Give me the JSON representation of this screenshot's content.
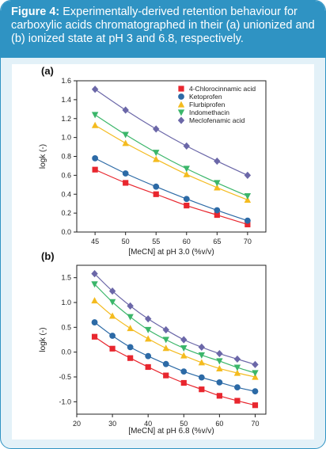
{
  "caption": {
    "lead": "Figure 4:",
    "text": " Experimentally-derived retention behaviour for carboxylic acids chromatographed in their (a) unionized and (b) ionized state at pH 3 and 6.8, respectively."
  },
  "chart_data": [
    {
      "type": "line",
      "panel_label": "(a)",
      "xlabel": "[MeCN] at pH 3.0 (%v/v)",
      "ylabel": "logk (-)",
      "x": [
        45,
        50,
        55,
        60,
        65,
        70
      ],
      "xlim": [
        42,
        73
      ],
      "ylim": [
        0.0,
        1.6
      ],
      "xticks": [
        45,
        50,
        55,
        60,
        65,
        70
      ],
      "yticks": [
        0.0,
        0.2,
        0.4,
        0.6,
        0.8,
        1.0,
        1.2,
        1.4,
        1.6
      ],
      "ytick_labels": [
        "0.0",
        "0.2",
        "0.4",
        "0.6",
        "0.8",
        "1.0",
        "1.2",
        "1.4",
        "1.6"
      ],
      "legend_position": "top-right",
      "series": [
        {
          "name": "4-Chlorocinnamic acid",
          "color": "#e8262e",
          "marker": "square",
          "values": [
            0.66,
            0.52,
            0.4,
            0.28,
            0.18,
            0.08
          ]
        },
        {
          "name": "Ketoprofen",
          "color": "#2c6aa6",
          "marker": "circle",
          "values": [
            0.78,
            0.62,
            0.48,
            0.35,
            0.23,
            0.12
          ]
        },
        {
          "name": "Flurbiprofen",
          "color": "#f4bb1f",
          "marker": "triangle-up",
          "values": [
            1.13,
            0.94,
            0.77,
            0.61,
            0.47,
            0.34
          ]
        },
        {
          "name": "Indomethacin",
          "color": "#3bb66a",
          "marker": "triangle-down",
          "values": [
            1.24,
            1.03,
            0.84,
            0.67,
            0.52,
            0.38
          ]
        },
        {
          "name": "Meclofenamic acid",
          "color": "#6b67a8",
          "marker": "diamond",
          "values": [
            1.51,
            1.29,
            1.09,
            0.91,
            0.75,
            0.6
          ]
        }
      ]
    },
    {
      "type": "line",
      "panel_label": "(b)",
      "xlabel": "[MeCN] at pH 6.8 (%v/v)",
      "ylabel": "logk (-)",
      "x": [
        25,
        30,
        35,
        40,
        45,
        50,
        55,
        60,
        65,
        70
      ],
      "xlim": [
        20,
        73
      ],
      "ylim": [
        -1.25,
        1.75
      ],
      "xticks": [
        20,
        30,
        40,
        50,
        60,
        70
      ],
      "yticks": [
        -1.0,
        -0.5,
        0.0,
        0.5,
        1.0,
        1.5
      ],
      "ytick_labels": [
        "-1.0",
        "-0.5",
        "0.0",
        "0.5",
        "1.0",
        "1.5"
      ],
      "series": [
        {
          "name": "4-Chlorocinnamic acid",
          "color": "#e8262e",
          "marker": "square",
          "values": [
            0.31,
            0.07,
            -0.12,
            -0.3,
            -0.47,
            -0.62,
            -0.75,
            -0.88,
            -0.98,
            -1.07
          ]
        },
        {
          "name": "Ketoprofen",
          "color": "#2c6aa6",
          "marker": "circle",
          "values": [
            0.6,
            0.33,
            0.1,
            -0.08,
            -0.24,
            -0.39,
            -0.51,
            -0.61,
            -0.71,
            -0.79
          ]
        },
        {
          "name": "Flurbiprofen",
          "color": "#f4bb1f",
          "marker": "triangle-up",
          "values": [
            1.04,
            0.73,
            0.48,
            0.27,
            0.08,
            -0.07,
            -0.21,
            -0.33,
            -0.42,
            -0.5
          ]
        },
        {
          "name": "Indomethacin",
          "color": "#3bb66a",
          "marker": "triangle-down",
          "values": [
            1.37,
            1.01,
            0.71,
            0.45,
            0.25,
            0.08,
            -0.06,
            -0.18,
            -0.31,
            -0.42
          ]
        },
        {
          "name": "Meclofenamic acid",
          "color": "#6b67a8",
          "marker": "diamond",
          "values": [
            1.58,
            1.23,
            0.93,
            0.67,
            0.45,
            0.25,
            0.1,
            -0.03,
            -0.14,
            -0.25
          ]
        }
      ]
    }
  ]
}
